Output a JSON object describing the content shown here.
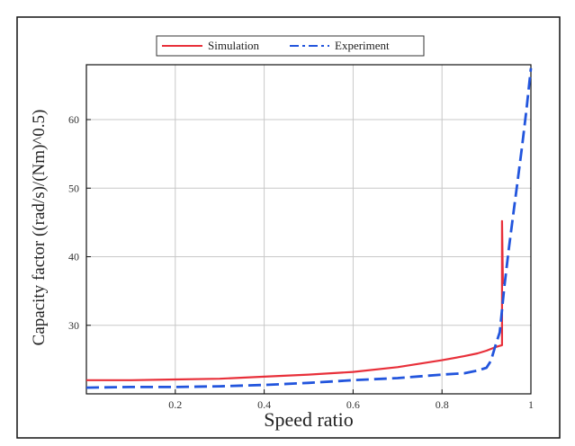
{
  "chart_data": {
    "type": "line",
    "title": "",
    "xlabel": "Speed ratio",
    "ylabel": "Capacity factor ((rad/s)/(Nm)^0.5)",
    "xlim": [
      0,
      1
    ],
    "ylim": [
      20,
      68
    ],
    "x_ticks": [
      0.2,
      0.4,
      0.6,
      0.8,
      1
    ],
    "x_tick_labels": [
      "0.2",
      "0.4",
      "0.6",
      "0.8",
      "1"
    ],
    "y_ticks": [
      30,
      40,
      50,
      60
    ],
    "y_tick_labels": [
      "30",
      "40",
      "50",
      "60"
    ],
    "grid": true,
    "legend_position": "top-center",
    "series": [
      {
        "name": "Simulation",
        "color": "#e8303a",
        "style": "solid",
        "x": [
          0,
          0.1,
          0.2,
          0.3,
          0.4,
          0.5,
          0.6,
          0.7,
          0.75,
          0.8,
          0.85,
          0.88,
          0.9,
          0.92,
          0.93,
          0.935,
          0.935,
          0.937
        ],
        "y": [
          22.0,
          22.0,
          22.1,
          22.2,
          22.5,
          22.8,
          23.2,
          23.9,
          24.4,
          24.9,
          25.5,
          25.9,
          26.3,
          26.8,
          27.0,
          27.1,
          45.2,
          36.0
        ]
      },
      {
        "name": "Experiment",
        "color": "#2255dd",
        "style": "dashed",
        "x": [
          0,
          0.1,
          0.2,
          0.3,
          0.4,
          0.5,
          0.6,
          0.7,
          0.8,
          0.85,
          0.88,
          0.9,
          0.91,
          0.92,
          0.93,
          0.94,
          0.95,
          0.96,
          0.97,
          0.98,
          0.99,
          1.0
        ],
        "y": [
          20.9,
          21.0,
          21.0,
          21.1,
          21.3,
          21.6,
          22.0,
          22.3,
          22.8,
          23.0,
          23.4,
          23.8,
          24.8,
          27.0,
          29.0,
          35.5,
          41.0,
          46.0,
          51.0,
          56.0,
          61.5,
          67.5
        ]
      }
    ]
  }
}
